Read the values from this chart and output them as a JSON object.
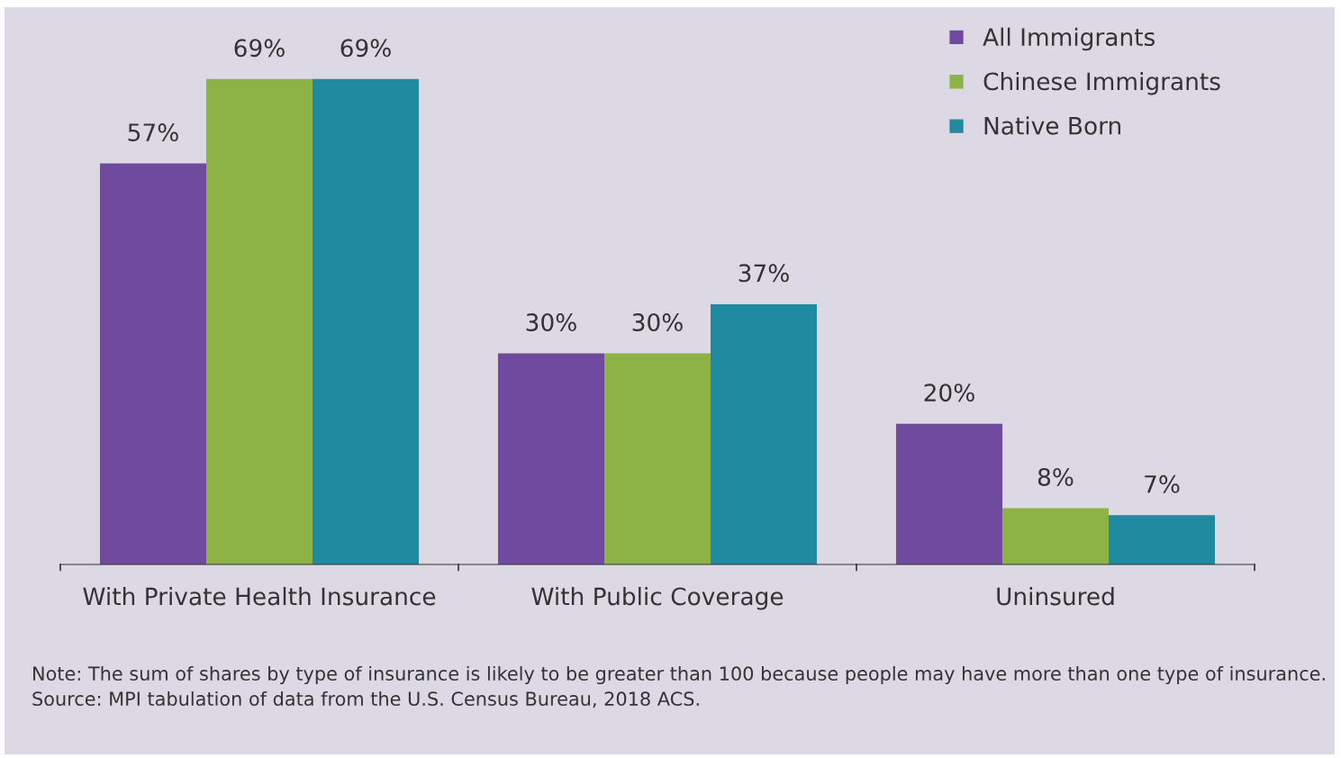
{
  "chart_data": {
    "type": "bar",
    "categories": [
      "With Private Health Insurance",
      "With Public Coverage",
      "Uninsured"
    ],
    "series": [
      {
        "name": "All Immigrants",
        "color": "#6f4a9e",
        "values": [
          57,
          30,
          20
        ],
        "value_labels": [
          "57%",
          "30%",
          "20%"
        ]
      },
      {
        "name": "Chinese Immigrants",
        "color": "#8db346",
        "values": [
          69,
          30,
          8
        ],
        "value_labels": [
          "69%",
          "30%",
          "8%"
        ]
      },
      {
        "name": "Native Born",
        "color": "#1f8aa0",
        "values": [
          69,
          37,
          7
        ],
        "value_labels": [
          "69%",
          "37%",
          "7%"
        ]
      }
    ],
    "legend": "top right",
    "grid": false,
    "tick_labels": "x",
    "annotations": [
      "Note: The sum of shares by type of insurance is likely to be greater than 100 because people may have more than one type of insurance.",
      "Source: MPI tabulation of data from the U.S. Census Bureau, 2018 ACS."
    ]
  }
}
